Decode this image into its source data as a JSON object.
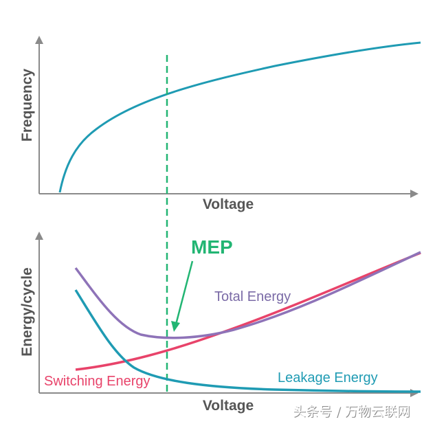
{
  "top_chart": {
    "y_axis_title": "Frequency",
    "x_axis_title": "Voltage"
  },
  "bottom_chart": {
    "y_axis_title": "Energy/cycle",
    "x_axis_title": "Voltage",
    "labels": {
      "total": "Total Energy",
      "switching": "Switching Energy",
      "leakage": "Leakage Energy"
    }
  },
  "mep_label": "MEP",
  "watermark": "头条号 / 万物云联网",
  "colors": {
    "axis": "#8a8a8a",
    "frequency": "#1f9bb3",
    "total": "#8e73b8",
    "switching": "#e8436a",
    "leakage": "#1f9bb3",
    "mep": "#22b573",
    "axis_title": "#555555"
  }
}
